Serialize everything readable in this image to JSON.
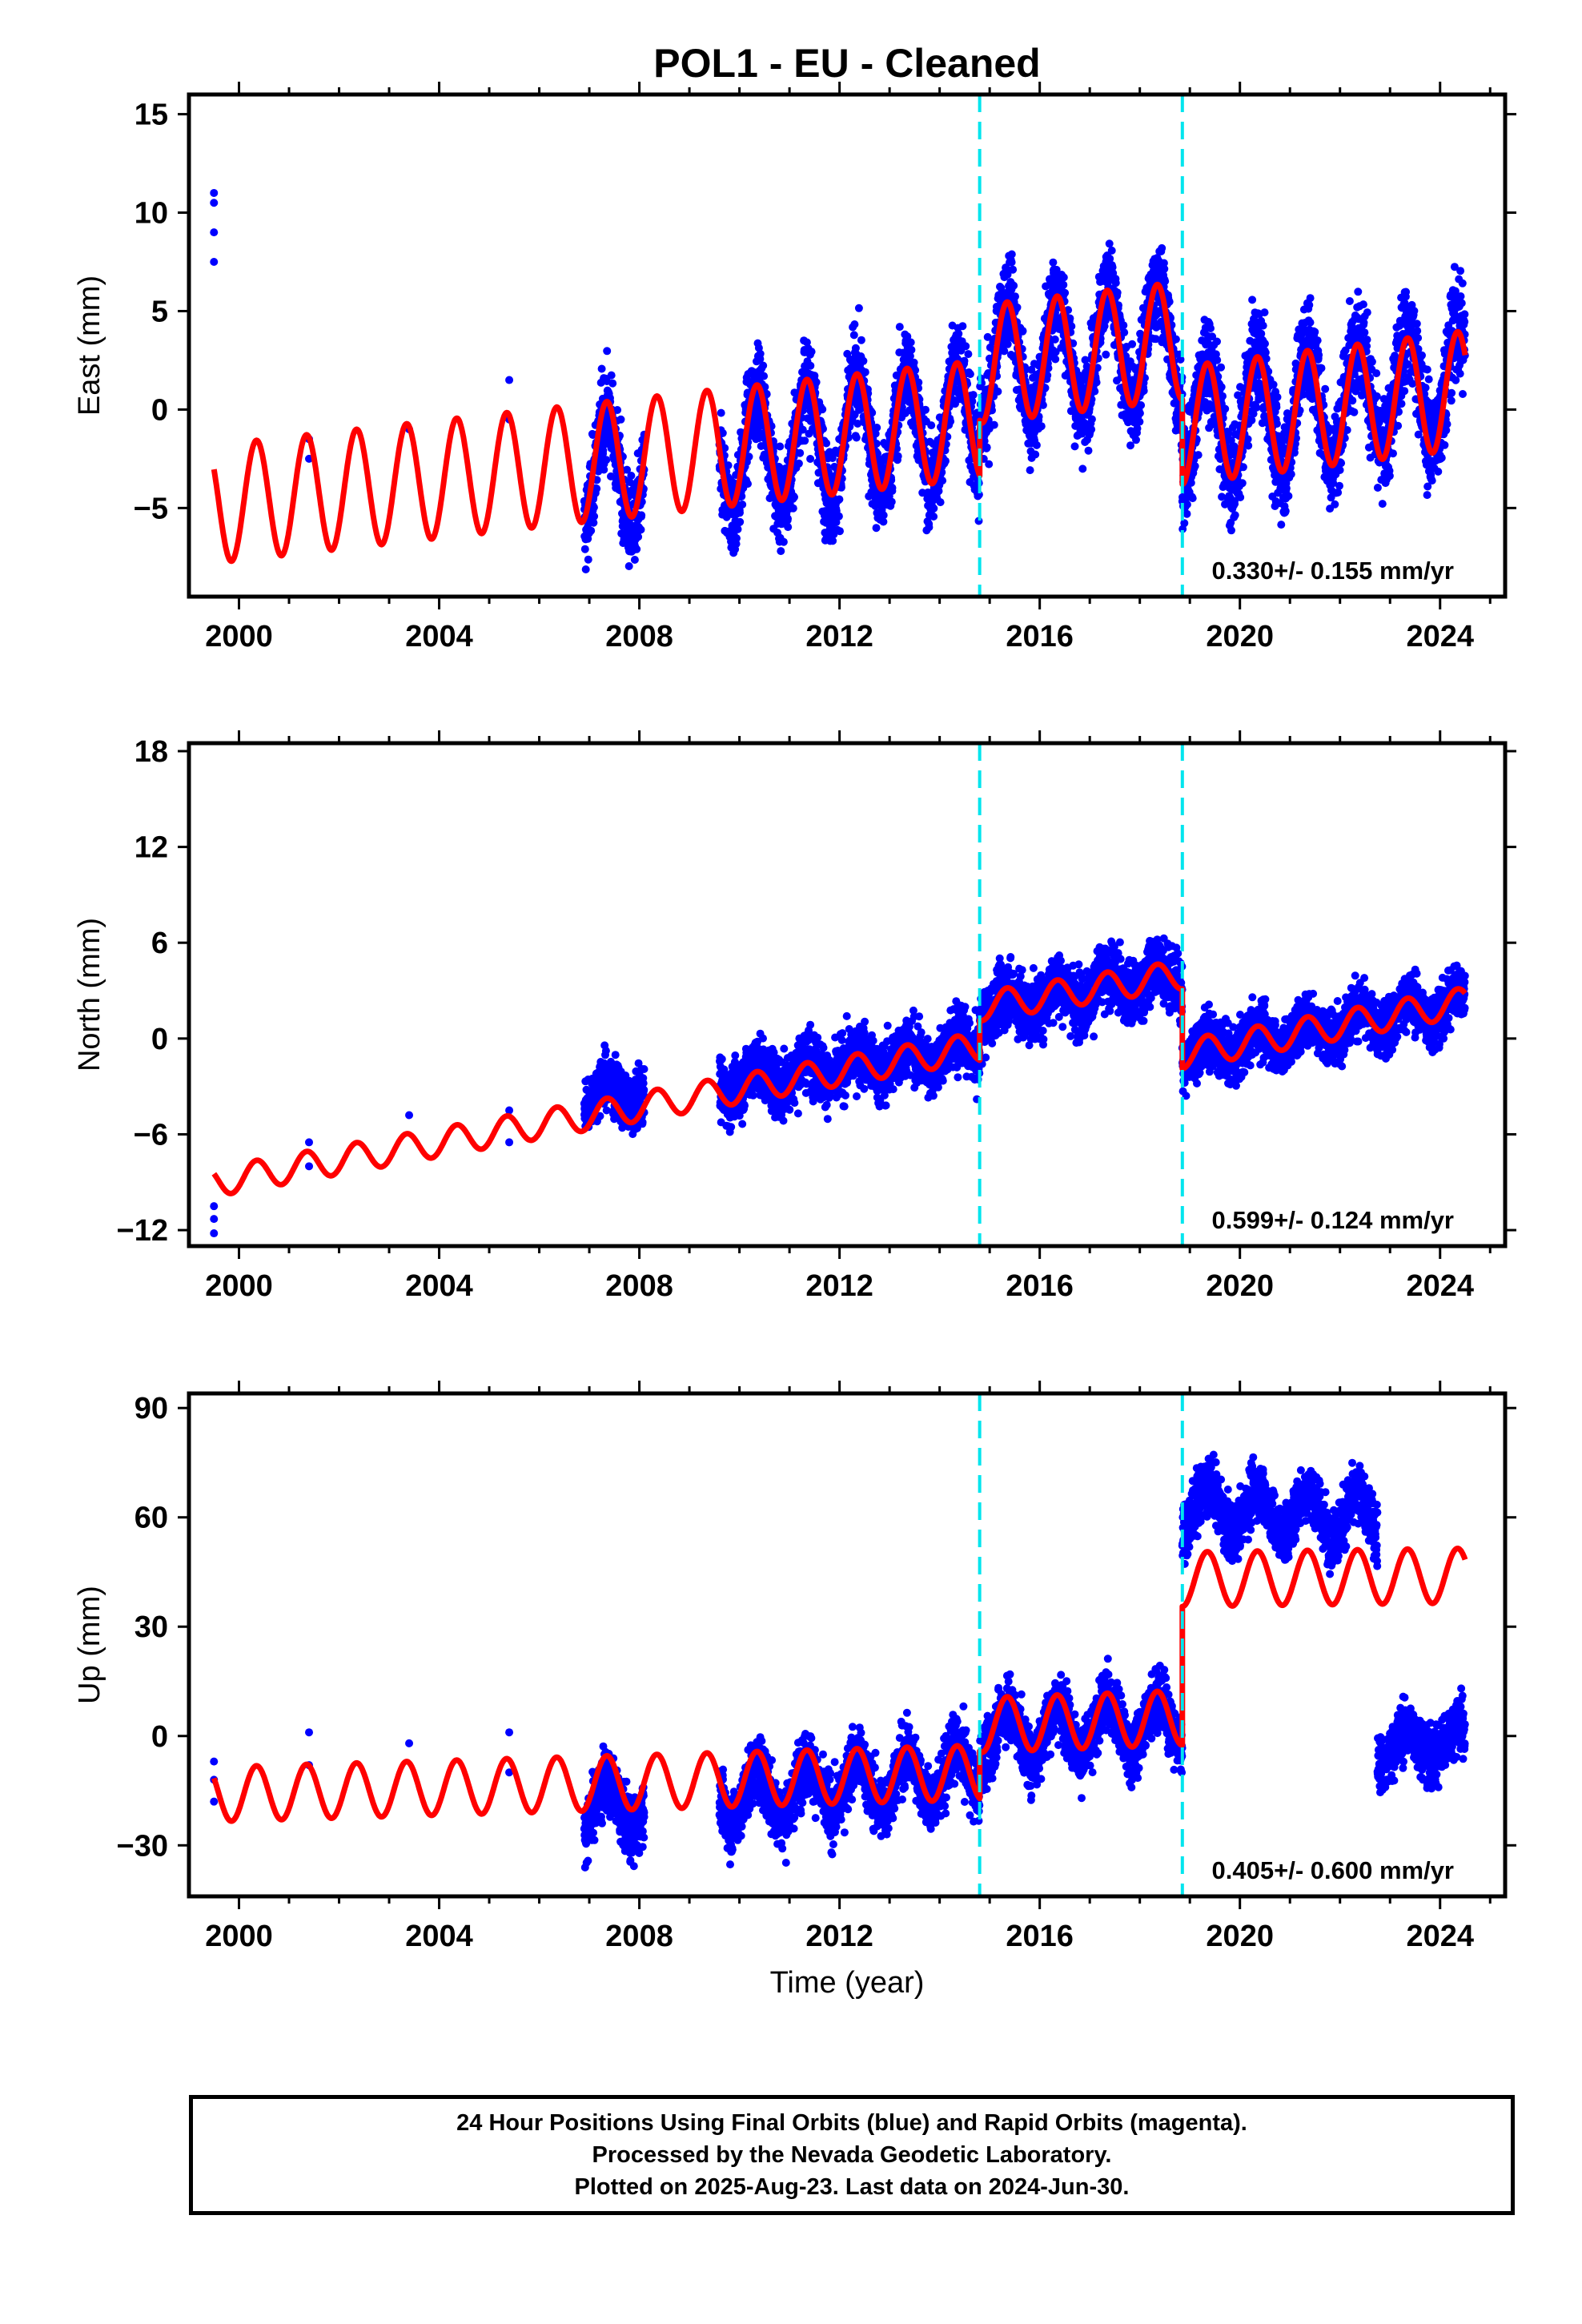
{
  "title": "POL1  - EU - Cleaned",
  "colors": {
    "data_points": "#0000ff",
    "model_line": "#ff0000",
    "break_lines": "#00e5ee",
    "axes": "#000000"
  },
  "chart_data": [
    {
      "type": "scatter",
      "component": "East",
      "ylabel": "East (mm)",
      "xlabel": "",
      "ylim": [
        -9.5,
        16
      ],
      "xlim": [
        1999.0,
        2025.3
      ],
      "yticks": [
        -5,
        0,
        5,
        10,
        15
      ],
      "ytick_labels": [
        "−5",
        "0",
        "5",
        "10",
        "15"
      ],
      "xticks": [
        2000,
        2004,
        2008,
        2012,
        2016,
        2020,
        2024
      ],
      "xtick_labels": [
        "2000",
        "2004",
        "2008",
        "2012",
        "2016",
        "2020",
        "2024"
      ],
      "rate_annotation": "0.330+/- 0.155 mm/yr",
      "break_epochs": [
        2014.8,
        2018.85
      ],
      "series": [
        {
          "kind": "observations",
          "segments": [
            {
              "x": [
                1999.5,
                1999.5,
                1999.5,
                1999.5,
                2001.4,
                2001.4,
                2003.4,
                2005.4,
                2005.4
              ],
              "y": [
                11.0,
                10.5,
                9.0,
                7.5,
                -1.5,
                -2.5,
                -1.0,
                1.5,
                -0.5
              ]
            },
            {
              "x_start": 2006.9,
              "x_end": 2008.1,
              "trend_start": -3.3,
              "trend_end": -2.9,
              "amplitude": 3.0,
              "scatter": 1.6
            },
            {
              "x_start": 2009.6,
              "x_end": 2014.8,
              "trend_start": -2.3,
              "trend_end": -0.5,
              "amplitude": 3.0,
              "scatter": 1.6
            },
            {
              "x_start": 2014.8,
              "x_end": 2018.85,
              "trend_start": 2.3,
              "trend_end": 3.5,
              "amplitude": 3.0,
              "scatter": 1.6
            },
            {
              "x_start": 2018.85,
              "x_end": 2024.5,
              "trend_start": -0.8,
              "trend_end": 1.5,
              "amplitude": 3.0,
              "scatter": 1.8
            }
          ]
        },
        {
          "kind": "model",
          "x_start": 1999.5,
          "x_end": 2024.5,
          "amplitude": 3.0,
          "trend_segments": [
            {
              "x_start": 1999.5,
              "x_end": 2014.8,
              "y_start": -4.8,
              "y_end": -0.5
            },
            {
              "x_start": 2014.8,
              "x_end": 2018.85,
              "y_start": 2.3,
              "y_end": 3.5
            },
            {
              "x_start": 2018.85,
              "x_end": 2024.5,
              "y_start": -0.8,
              "y_end": 1.0
            }
          ]
        }
      ]
    },
    {
      "type": "scatter",
      "component": "North",
      "ylabel": "North (mm)",
      "xlabel": "",
      "ylim": [
        -13,
        18.5
      ],
      "xlim": [
        1999.0,
        2025.3
      ],
      "yticks": [
        -12,
        -6,
        0,
        6,
        12,
        18
      ],
      "ytick_labels": [
        "−12",
        "−6",
        "0",
        "6",
        "12",
        "18"
      ],
      "xticks": [
        2000,
        2004,
        2008,
        2012,
        2016,
        2020,
        2024
      ],
      "xtick_labels": [
        "2000",
        "2004",
        "2008",
        "2012",
        "2016",
        "2020",
        "2024"
      ],
      "rate_annotation": "0.599+/- 0.124 mm/yr",
      "break_epochs": [
        2014.8,
        2018.85
      ],
      "series": [
        {
          "kind": "observations",
          "segments": [
            {
              "x": [
                1999.5,
                1999.5,
                1999.5,
                2001.4,
                2001.4,
                2003.4,
                2005.4,
                2005.4
              ],
              "y": [
                -10.5,
                -11.3,
                -12.2,
                -6.5,
                -8.0,
                -4.8,
                -4.5,
                -6.5
              ]
            },
            {
              "x_start": 2006.9,
              "x_end": 2008.1,
              "trend_start": -3.6,
              "trend_end": -3.3,
              "amplitude": 0.8,
              "scatter": 1.2
            },
            {
              "x_start": 2009.6,
              "x_end": 2014.8,
              "trend_start": -2.8,
              "trend_end": -0.6,
              "amplitude": 0.8,
              "scatter": 1.3
            },
            {
              "x_start": 2014.8,
              "x_end": 2018.85,
              "trend_start": 1.8,
              "trend_end": 4.0,
              "amplitude": 0.8,
              "scatter": 1.4
            },
            {
              "x_start": 2018.85,
              "x_end": 2024.5,
              "trend_start": -1.0,
              "trend_end": 2.3,
              "amplitude": 0.8,
              "scatter": 1.2
            }
          ]
        },
        {
          "kind": "model",
          "x_start": 1999.5,
          "x_end": 2024.5,
          "amplitude": 0.9,
          "trend_segments": [
            {
              "x_start": 1999.5,
              "x_end": 2014.8,
              "y_start": -9.0,
              "y_end": -0.5
            },
            {
              "x_start": 2014.8,
              "x_end": 2018.85,
              "y_start": 2.0,
              "y_end": 4.0
            },
            {
              "x_start": 2018.85,
              "x_end": 2024.5,
              "y_start": -1.0,
              "y_end": 2.3
            }
          ]
        }
      ]
    },
    {
      "type": "scatter",
      "component": "Up",
      "ylabel": "Up (mm)",
      "xlabel": "Time (year)",
      "ylim": [
        -44,
        94
      ],
      "xlim": [
        1999.0,
        2025.3
      ],
      "yticks": [
        -30,
        0,
        30,
        60,
        90
      ],
      "ytick_labels": [
        "−30",
        "0",
        "30",
        "60",
        "90"
      ],
      "xticks": [
        2000,
        2004,
        2008,
        2012,
        2016,
        2020,
        2024
      ],
      "xtick_labels": [
        "2000",
        "2004",
        "2008",
        "2012",
        "2016",
        "2020",
        "2024"
      ],
      "rate_annotation": "0.405+/- 0.600 mm/yr",
      "break_epochs": [
        2014.8,
        2018.85
      ],
      "series": [
        {
          "kind": "observations",
          "segments": [
            {
              "x": [
                1999.5,
                1999.5,
                1999.5,
                2001.4,
                2001.4,
                2003.4,
                2005.4,
                2005.4
              ],
              "y": [
                -7.0,
                -12.0,
                -18.0,
                1.0,
                -8.0,
                -2.0,
                1.0,
                -10.0
              ]
            },
            {
              "x_start": 2006.9,
              "x_end": 2008.1,
              "trend_start": -20.0,
              "trend_end": -18.0,
              "amplitude": 7.0,
              "scatter": 6.0
            },
            {
              "x_start": 2009.6,
              "x_end": 2014.8,
              "trend_start": -17.0,
              "trend_end": -10.0,
              "amplitude": 7.0,
              "scatter": 6.0
            },
            {
              "x_start": 2014.8,
              "x_end": 2018.85,
              "trend_start": 0.0,
              "trend_end": 4.0,
              "amplitude": 7.0,
              "scatter": 6.0
            },
            {
              "x_start": 2018.85,
              "x_end": 2022.75,
              "trend_start": 63.0,
              "trend_end": 60.0,
              "amplitude": 6.0,
              "scatter": 5.5
            },
            {
              "x_start": 2022.75,
              "x_end": 2024.5,
              "trend_start": -3.0,
              "trend_end": -1.0,
              "amplitude": 4.0,
              "scatter": 5.5
            }
          ]
        },
        {
          "kind": "model",
          "x_start": 1999.5,
          "x_end": 2024.5,
          "amplitude": 7.5,
          "trend_segments": [
            {
              "x_start": 1999.5,
              "x_end": 2014.8,
              "y_start": -16.0,
              "y_end": -10.0
            },
            {
              "x_start": 2014.8,
              "x_end": 2018.85,
              "y_start": 3.0,
              "y_end": 5.0
            },
            {
              "x_start": 2018.85,
              "x_end": 2024.5,
              "y_start": 43.0,
              "y_end": 44.0
            }
          ]
        }
      ]
    }
  ],
  "footer": {
    "line1": "24 Hour Positions Using Final Orbits (blue) and Rapid Orbits (magenta).",
    "line2": "Processed by the Nevada Geodetic Laboratory.",
    "line3": "Plotted on 2025-Aug-23. Last data on 2024-Jun-30."
  }
}
